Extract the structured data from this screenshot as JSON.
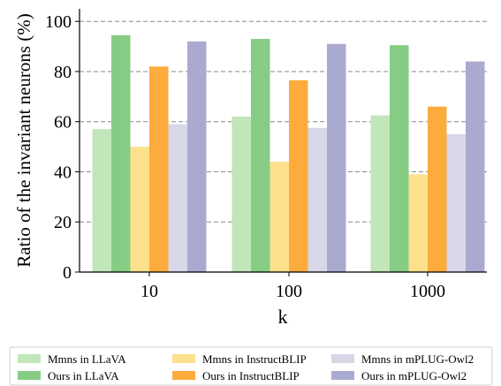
{
  "chart_data": {
    "type": "bar",
    "xlabel": "k",
    "ylabel": "Ratio of the invariant neurons (%)",
    "categories": [
      "10",
      "100",
      "1000"
    ],
    "ylim": [
      0,
      105
    ],
    "yticks": [
      "0",
      "20",
      "40",
      "60",
      "80",
      "100"
    ],
    "grid": "horizontal dashed",
    "legend_position": "bottom",
    "series": [
      {
        "name": "Mmns in LLaVA",
        "color": "#c1e6b9",
        "values": [
          57,
          62,
          62.5
        ]
      },
      {
        "name": "Ours in LLaVA",
        "color": "#86cc85",
        "values": [
          94.5,
          93,
          90.5
        ]
      },
      {
        "name": "Mmns in InstructBLIP",
        "color": "#fde08c",
        "values": [
          50,
          44,
          39
        ]
      },
      {
        "name": "Ours in InstructBLIP",
        "color": "#fdab3d",
        "values": [
          82,
          76.5,
          66
        ]
      },
      {
        "name": "Mmns in mPLUG-Owl2",
        "color": "#d7d7e8",
        "values": [
          59,
          57.5,
          55
        ]
      },
      {
        "name": "Ours in mPLUG-Owl2",
        "color": "#aaaad1",
        "values": [
          92,
          91,
          84
        ]
      }
    ]
  }
}
